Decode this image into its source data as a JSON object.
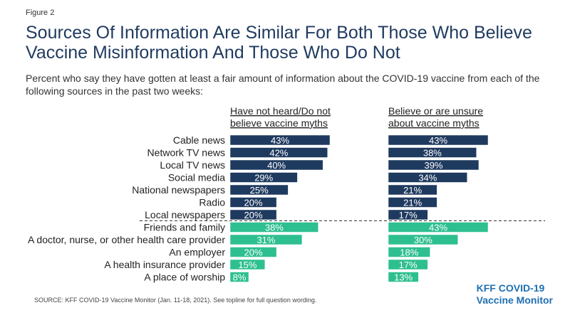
{
  "figure_label": "Figure 2",
  "title": "Sources Of Information Are Similar For Both Those Who Believe Vaccine Misinformation And Those Who Do Not",
  "subtitle": "Percent who say they have gotten at least a fair amount of information about the COVID-19 vaccine from each of the following sources in the past two weeks:",
  "source": "SOURCE: KFF COVID-19 Vaccine Monitor (Jan. 11-18, 2021). See topline for full question wording.",
  "brand": {
    "line1": "KFF COVID-19",
    "line2": "Vaccine Monitor"
  },
  "colors": {
    "group1": "#1f3a5f",
    "group2": "#2dbf8f",
    "title": "#1f3a5f",
    "brand": "#1f6fb2"
  },
  "chart_data": {
    "type": "bar",
    "orientation": "horizontal",
    "categories": [
      "Cable news",
      "Network TV news",
      "Local TV news",
      "Social media",
      "National newspapers",
      "Radio",
      "Local newspapers",
      "Friends and family",
      "A doctor, nurse, or other health care provider",
      "An employer",
      "A health insurance provider",
      "A place of worship"
    ],
    "category_group": [
      1,
      1,
      1,
      1,
      1,
      1,
      1,
      2,
      2,
      2,
      2,
      2
    ],
    "series": [
      {
        "name": "Have not heard/Do not believe vaccine myths",
        "values": [
          43,
          42,
          40,
          29,
          25,
          20,
          20,
          38,
          31,
          20,
          15,
          8
        ]
      },
      {
        "name": "Believe or are unsure about vaccine myths",
        "values": [
          43,
          38,
          39,
          34,
          21,
          21,
          17,
          43,
          30,
          18,
          17,
          13
        ]
      }
    ],
    "value_suffix": "%",
    "series_header_lines": [
      [
        "Have not heard/Do not",
        "believe vaccine myths"
      ],
      [
        "Believe or are unsure",
        "about vaccine myths"
      ]
    ]
  }
}
